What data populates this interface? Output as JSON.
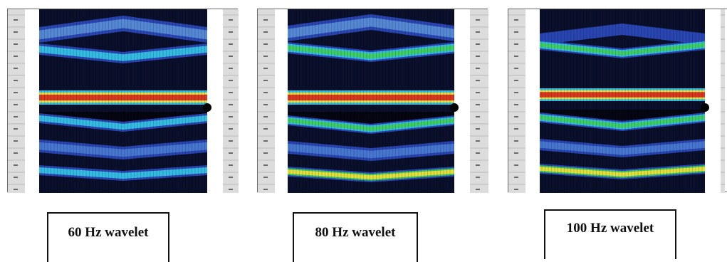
{
  "panels": [
    {
      "caption": "60 Hz wavelet",
      "frequency_hz": 60
    },
    {
      "caption": "80 Hz wavelet",
      "frequency_hz": 80
    },
    {
      "caption": "100 Hz wavelet",
      "frequency_hz": 100
    }
  ],
  "colors": {
    "background": "#0a0f2b",
    "trough": "#2b49b8",
    "peak_cyan": "#35c8e8",
    "peak_green": "#3fcf5a",
    "peak_red": "#d7261c",
    "peak_yellow": "#f2e23a",
    "strip": "#dcdcdc"
  }
}
